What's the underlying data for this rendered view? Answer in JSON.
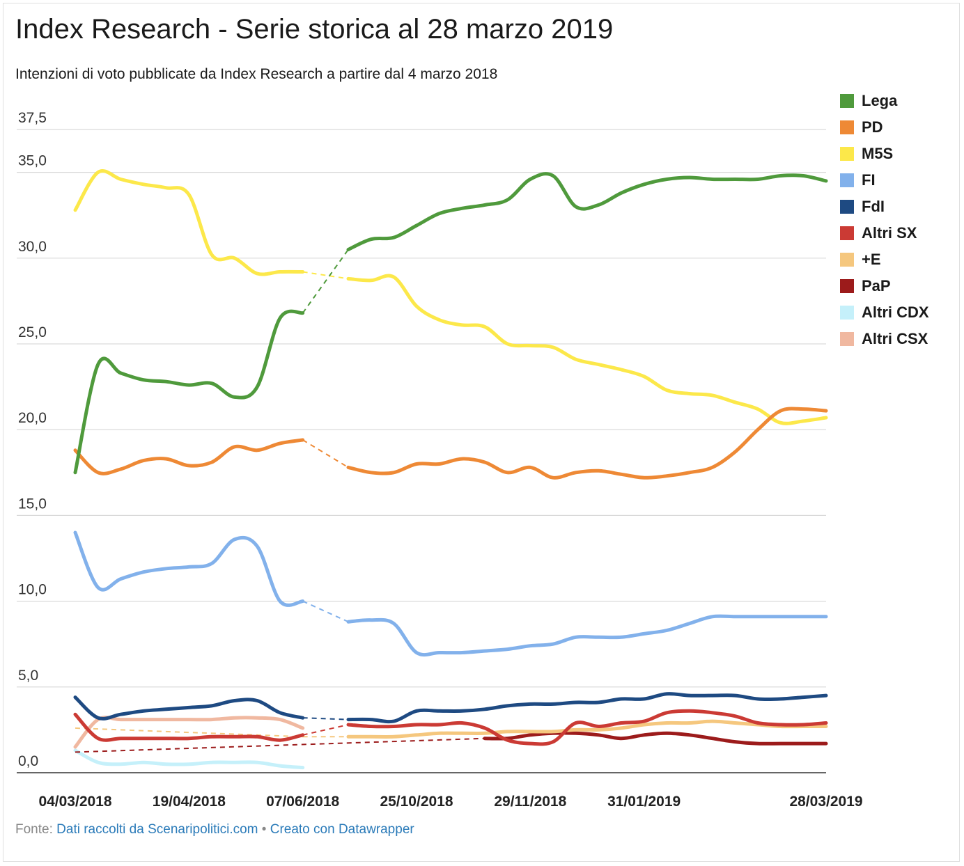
{
  "title": "Index Research - Serie storica al 28 marzo 2019",
  "subtitle": "Intenzioni di voto pubblicate da Index Research a partire dal 4 marzo 2018",
  "footer": {
    "prefix": "Fonte:",
    "source_link": "Dati raccolti da Scenaripolitici.com",
    "separator": "•",
    "credit_link": "Creato con Datawrapper"
  },
  "chart_data": {
    "type": "line",
    "ylim": [
      0,
      37.5
    ],
    "yticks": [
      "0,0",
      "5,0",
      "10,0",
      "15,0",
      "20,0",
      "25,0",
      "30,0",
      "35,0",
      "37,5"
    ],
    "ytick_values": [
      0,
      5,
      10,
      15,
      20,
      25,
      30,
      35,
      37.5
    ],
    "xlim": [
      0,
      33
    ],
    "xticks": [
      "04/03/2018",
      "19/04/2018",
      "07/06/2018",
      "25/10/2018",
      "29/11/2018",
      "31/01/2019",
      "28/03/2019"
    ],
    "xtick_positions": [
      0,
      5,
      10,
      15,
      20,
      25,
      33
    ],
    "gap": {
      "from_index": 10,
      "to_index": 12,
      "style": "dashed"
    },
    "x": [
      0,
      1,
      2,
      3,
      4,
      5,
      6,
      7,
      8,
      9,
      10,
      12,
      13,
      14,
      15,
      16,
      17,
      18,
      19,
      20,
      21,
      22,
      23,
      24,
      25,
      26,
      27,
      28,
      29,
      30,
      31,
      32,
      33
    ],
    "legend_position": "right",
    "grid": true,
    "series": [
      {
        "name": "Lega",
        "color": "#4f9a3c",
        "values": [
          17.5,
          23.8,
          23.3,
          22.9,
          22.8,
          22.6,
          22.7,
          21.9,
          22.5,
          26.5,
          26.8,
          30.5,
          31.1,
          31.2,
          31.9,
          32.6,
          32.9,
          33.1,
          33.4,
          34.6,
          34.8,
          33.0,
          33.1,
          33.8,
          34.3,
          34.6,
          34.7,
          34.6,
          34.6,
          34.6,
          34.8,
          34.8,
          34.5
        ]
      },
      {
        "name": "PD",
        "color": "#ee8935",
        "values": [
          18.8,
          17.5,
          17.7,
          18.2,
          18.3,
          17.9,
          18.1,
          19.0,
          18.8,
          19.2,
          19.4,
          17.8,
          17.5,
          17.5,
          18.0,
          18.0,
          18.3,
          18.1,
          17.5,
          17.8,
          17.2,
          17.5,
          17.6,
          17.4,
          17.2,
          17.3,
          17.5,
          17.8,
          18.7,
          20.0,
          21.1,
          21.2,
          21.1
        ]
      },
      {
        "name": "M5S",
        "color": "#fce84a",
        "values": [
          32.8,
          35.0,
          34.6,
          34.3,
          34.1,
          33.7,
          30.2,
          30.0,
          29.1,
          29.2,
          29.2,
          28.8,
          28.7,
          28.9,
          27.2,
          26.4,
          26.1,
          26.0,
          25.0,
          24.9,
          24.8,
          24.1,
          23.8,
          23.5,
          23.1,
          22.3,
          22.1,
          22.0,
          21.6,
          21.2,
          20.4,
          20.5,
          20.7
        ]
      },
      {
        "name": "FI",
        "color": "#82b1eb",
        "values": [
          14.0,
          10.8,
          11.3,
          11.7,
          11.9,
          12.0,
          12.2,
          13.6,
          13.2,
          10.0,
          10.0,
          8.8,
          8.9,
          8.7,
          7.0,
          7.0,
          7.0,
          7.1,
          7.2,
          7.4,
          7.5,
          7.9,
          7.9,
          7.9,
          8.1,
          8.3,
          8.7,
          9.1,
          9.1,
          9.1,
          9.1,
          9.1,
          9.1
        ]
      },
      {
        "name": "FdI",
        "color": "#1e4a82",
        "values": [
          4.4,
          3.2,
          3.4,
          3.6,
          3.7,
          3.8,
          3.9,
          4.2,
          4.2,
          3.5,
          3.2,
          3.1,
          3.1,
          3.0,
          3.6,
          3.6,
          3.6,
          3.7,
          3.9,
          4.0,
          4.0,
          4.1,
          4.1,
          4.3,
          4.3,
          4.6,
          4.5,
          4.5,
          4.5,
          4.3,
          4.3,
          4.4,
          4.5
        ]
      },
      {
        "name": "Altri SX",
        "color": "#cb3a34",
        "values": [
          3.4,
          2.0,
          2.0,
          2.0,
          2.0,
          2.0,
          2.1,
          2.1,
          2.1,
          1.9,
          2.2,
          2.8,
          2.7,
          2.7,
          2.8,
          2.8,
          2.9,
          2.6,
          1.9,
          1.7,
          1.8,
          2.9,
          2.7,
          2.9,
          3.0,
          3.5,
          3.6,
          3.5,
          3.3,
          2.9,
          2.8,
          2.8,
          2.9
        ]
      },
      {
        "name": "+E",
        "color": "#f5c77e",
        "values": [
          2.6,
          null,
          null,
          null,
          null,
          null,
          null,
          null,
          null,
          null,
          2.1,
          2.1,
          2.1,
          2.1,
          2.2,
          2.3,
          2.3,
          2.3,
          2.4,
          2.4,
          2.4,
          2.5,
          2.5,
          2.6,
          2.8,
          2.9,
          2.9,
          3.0,
          2.9,
          2.8,
          2.7,
          2.7,
          2.7
        ]
      },
      {
        "name": "PaP",
        "color": "#9c1b1b",
        "values": [
          1.2,
          null,
          null,
          null,
          null,
          null,
          null,
          null,
          null,
          null,
          null,
          null,
          null,
          null,
          null,
          null,
          null,
          2.0,
          2.0,
          2.2,
          2.3,
          2.3,
          2.2,
          2.0,
          2.2,
          2.3,
          2.2,
          2.0,
          1.8,
          1.7,
          1.7,
          1.7,
          1.7
        ]
      },
      {
        "name": "Altri CDX",
        "color": "#c5f0fa",
        "values": [
          1.3,
          0.6,
          0.5,
          0.6,
          0.5,
          0.5,
          0.6,
          0.6,
          0.6,
          0.4,
          0.3,
          null,
          null,
          null,
          null,
          null,
          null,
          null,
          null,
          null,
          null,
          null,
          null,
          null,
          null,
          null,
          null,
          null,
          null,
          null,
          null,
          null,
          null
        ]
      },
      {
        "name": "Altri CSX",
        "color": "#f0b8a0",
        "values": [
          1.5,
          3.1,
          3.1,
          3.1,
          3.1,
          3.1,
          3.1,
          3.2,
          3.2,
          3.1,
          2.6,
          null,
          null,
          null,
          null,
          null,
          null,
          null,
          null,
          null,
          null,
          null,
          null,
          null,
          null,
          null,
          null,
          null,
          null,
          null,
          null,
          null,
          null
        ]
      }
    ]
  }
}
